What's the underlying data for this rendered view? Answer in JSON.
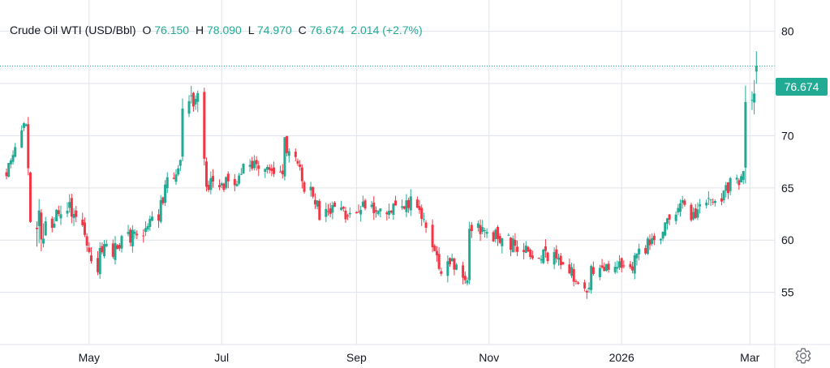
{
  "legend": {
    "symbol": "Crude Oil WTI (USD/Bbl)",
    "open_label": "O",
    "open_value": "76.150",
    "high_label": "H",
    "high_value": "78.090",
    "low_label": "L",
    "low_value": "74.970",
    "close_label": "C",
    "close_value": "76.674",
    "change": "2.014 (+2.7%)"
  },
  "last_price_label": "76.674",
  "colors": {
    "up": "#22ab94",
    "down": "#f23645",
    "grid": "#e0e3eb",
    "axis_text": "#131722",
    "price_line": "#22ab94"
  },
  "icons": {
    "settings": "gear-icon"
  },
  "chart_data": {
    "type": "candlestick",
    "title": "Crude Oil WTI (USD/Bbl)",
    "y_ticks": [
      55,
      60,
      65,
      70,
      75,
      80
    ],
    "ylim": [
      50,
      83
    ],
    "x_tick_labels": [
      "May",
      "Jul",
      "Sep",
      "Nov",
      "2026",
      "Mar"
    ],
    "x_tick_dates": [
      "2025-05-01",
      "2025-07-01",
      "2025-09-01",
      "2025-11-01",
      "2026-01-01",
      "2026-03-01"
    ],
    "xlim": [
      "2025-03-24",
      "2026-03-08"
    ],
    "last_price": 76.674,
    "grid": true,
    "segments": [
      {
        "from": "2025-03-24",
        "to": "2025-04-02",
        "start": 66.5,
        "end": 71.5,
        "vol": 0.7
      },
      {
        "from": "2025-04-03",
        "to": "2025-04-04",
        "start": 67.0,
        "end": 62.0,
        "vol": 1.2
      },
      {
        "from": "2025-04-07",
        "to": "2025-04-10",
        "start": 61.5,
        "end": 60.5,
        "vol": 2.5
      },
      {
        "from": "2025-04-11",
        "to": "2025-04-23",
        "start": 61.5,
        "end": 63.0,
        "vol": 1.2
      },
      {
        "from": "2025-04-24",
        "to": "2025-05-05",
        "start": 62.5,
        "end": 57.3,
        "vol": 1.2
      },
      {
        "from": "2025-05-06",
        "to": "2025-05-31",
        "start": 58.5,
        "end": 61.5,
        "vol": 1.0
      },
      {
        "from": "2025-06-01",
        "to": "2025-06-12",
        "start": 62.5,
        "end": 68.0,
        "vol": 1.0
      },
      {
        "from": "2025-06-13",
        "to": "2025-06-20",
        "start": 72.0,
        "end": 74.5,
        "vol": 1.5
      },
      {
        "from": "2025-06-21",
        "to": "2025-06-23",
        "start": 76.5,
        "end": 68.5,
        "vol": 2.0
      },
      {
        "from": "2025-06-24",
        "to": "2025-07-10",
        "start": 65.0,
        "end": 66.0,
        "vol": 1.0
      },
      {
        "from": "2025-07-11",
        "to": "2025-07-29",
        "start": 67.5,
        "end": 66.0,
        "vol": 1.0
      },
      {
        "from": "2025-07-30",
        "to": "2025-08-15",
        "start": 69.5,
        "end": 62.5,
        "vol": 1.0
      },
      {
        "from": "2025-08-16",
        "to": "2025-09-30",
        "start": 62.5,
        "end": 63.5,
        "vol": 1.0
      },
      {
        "from": "2025-10-01",
        "to": "2025-10-10",
        "start": 62.0,
        "end": 57.0,
        "vol": 1.0
      },
      {
        "from": "2025-10-11",
        "to": "2025-10-22",
        "start": 58.5,
        "end": 56.5,
        "vol": 1.0
      },
      {
        "from": "2025-10-23",
        "to": "2025-11-30",
        "start": 61.0,
        "end": 58.5,
        "vol": 1.0
      },
      {
        "from": "2025-12-01",
        "to": "2025-12-17",
        "start": 58.5,
        "end": 55.3,
        "vol": 0.9
      },
      {
        "from": "2025-12-18",
        "to": "2026-01-06",
        "start": 57.0,
        "end": 57.5,
        "vol": 0.9
      },
      {
        "from": "2026-01-07",
        "to": "2026-01-31",
        "start": 58.0,
        "end": 64.0,
        "vol": 1.0
      },
      {
        "from": "2026-02-01",
        "to": "2026-02-26",
        "start": 62.5,
        "end": 66.0,
        "vol": 1.0
      },
      {
        "from": "2026-02-27",
        "to": "2026-03-01",
        "start": 67.0,
        "end": 72.0,
        "vol": 2.5
      },
      {
        "from": "2026-03-02",
        "to": "2026-03-04",
        "start": 73.0,
        "end": 76.674,
        "vol": 2.0
      }
    ]
  }
}
